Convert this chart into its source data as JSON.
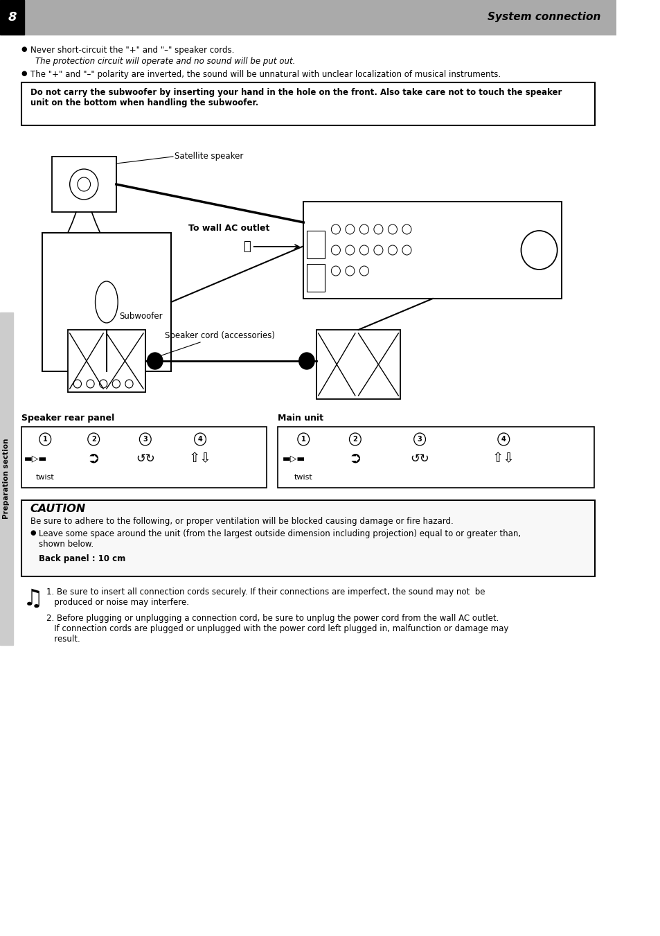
{
  "bg_color": "#ffffff",
  "header_bg": "#aaaaaa",
  "page_number": "8",
  "page_title": "System connection",
  "sidebar_text": "Preparation section",
  "bullet1": "Never short-circuit the \"+\" and \"–\" speaker cords.",
  "bullet1_cont": "The protection circuit will operate and no sound will be put out.",
  "bullet2": "The \"+\" and \"–\" polarity are inverted, the sound will be unnatural with unclear localization of musical instruments.",
  "warning_box_text": "Do not carry the subwoofer by inserting your hand in the hole on the front. Also take care not to touch the speaker\nunit on the bottom when handling the subwoofer.",
  "label_satellite": "Satellite speaker",
  "label_wall_ac": "To wall AC outlet",
  "label_subwoofer": "Subwoofer",
  "label_speaker_cord": "Speaker cord (accessories)",
  "label_speaker_rear": "Speaker rear panel",
  "label_main_unit": "Main unit",
  "label_twist": "twist",
  "caution_title": "CAUTION",
  "caution_text1": "Be sure to adhere to the following, or proper ventilation will be blocked causing damage or fire hazard.",
  "caution_bullet": "Leave some space around the unit (from the largest outside dimension including projection) equal to or greater than,\nshown below.",
  "caution_bold": "Back panel : 10 cm",
  "note1": "1. Be sure to insert all connection cords securely. If their connections are imperfect, the sound may not  be\n   produced or noise may interfere.",
  "note2": "2. Before plugging or unplugging a connection cord, be sure to unplug the power cord from the wall AC outlet.\n   If connection cords are plugged or unplugged with the power cord left plugged in, malfunction or damage may\n   result."
}
